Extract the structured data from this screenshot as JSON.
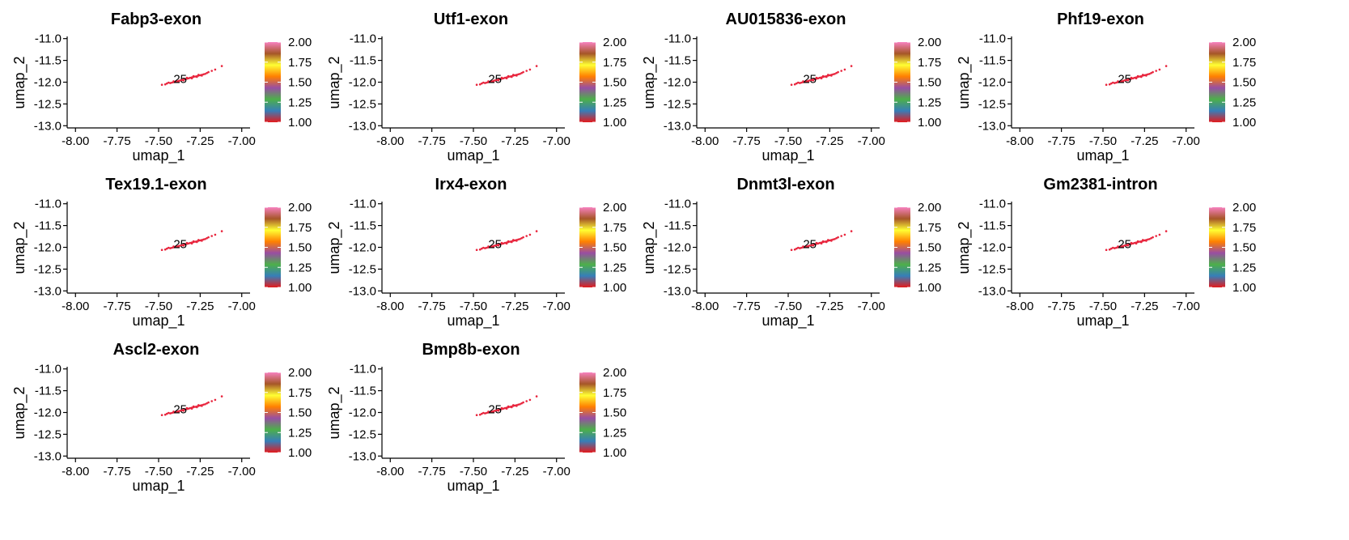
{
  "chart_data": {
    "type": "scatter",
    "axes": {
      "xlabel": "umap_1",
      "ylabel": "umap_2",
      "xlim": [
        -8.05,
        -6.95
      ],
      "ylim": [
        -13.05,
        -10.95
      ],
      "xticks": [
        -8.0,
        -7.75,
        -7.5,
        -7.25,
        -7.0
      ],
      "xtick_labels": [
        "-8.00",
        "-7.75",
        "-7.50",
        "-7.25",
        "-7.00"
      ],
      "yticks": [
        -11.0,
        -11.5,
        -12.0,
        -12.5,
        -13.0
      ],
      "ytick_labels": [
        "-11.0",
        "-11.5",
        "-12.0",
        "-12.5",
        "-13.0"
      ],
      "grid": false
    },
    "legend": {
      "type": "colorbar",
      "placement": "right",
      "range": [
        1.0,
        2.0
      ],
      "ticks": [
        2.0,
        1.75,
        1.5,
        1.25,
        1.0
      ],
      "tick_labels": [
        "2.00",
        "1.75",
        "1.50",
        "1.25",
        "1.00"
      ],
      "colors": [
        "#e41a1c",
        "#377eb8",
        "#4daf4a",
        "#984ea3",
        "#ff7f00",
        "#ffff33",
        "#a65628",
        "#f781bf"
      ]
    },
    "point_color": "#e8253d",
    "cluster_label": {
      "text": "25",
      "x": -7.37,
      "y": -11.93
    },
    "points": [
      {
        "x": -7.48,
        "y": -12.06
      },
      {
        "x": -7.46,
        "y": -12.05
      },
      {
        "x": -7.45,
        "y": -12.03
      },
      {
        "x": -7.43,
        "y": -12.02
      },
      {
        "x": -7.42,
        "y": -12.01
      },
      {
        "x": -7.41,
        "y": -12.0
      },
      {
        "x": -7.4,
        "y": -11.99
      },
      {
        "x": -7.39,
        "y": -11.98
      },
      {
        "x": -7.38,
        "y": -11.97
      },
      {
        "x": -7.37,
        "y": -11.96
      },
      {
        "x": -7.36,
        "y": -11.95
      },
      {
        "x": -7.35,
        "y": -11.94
      },
      {
        "x": -7.34,
        "y": -11.93
      },
      {
        "x": -7.33,
        "y": -11.92
      },
      {
        "x": -7.32,
        "y": -11.91
      },
      {
        "x": -7.31,
        "y": -11.9
      },
      {
        "x": -7.3,
        "y": -11.89
      },
      {
        "x": -7.29,
        "y": -11.88
      },
      {
        "x": -7.28,
        "y": -11.87
      },
      {
        "x": -7.27,
        "y": -11.86
      },
      {
        "x": -7.26,
        "y": -11.85
      },
      {
        "x": -7.25,
        "y": -11.84
      },
      {
        "x": -7.24,
        "y": -11.83
      },
      {
        "x": -7.23,
        "y": -11.82
      },
      {
        "x": -7.22,
        "y": -11.81
      },
      {
        "x": -7.21,
        "y": -11.79
      },
      {
        "x": -7.2,
        "y": -11.77
      },
      {
        "x": -7.18,
        "y": -11.74
      },
      {
        "x": -7.16,
        "y": -11.71
      },
      {
        "x": -7.12,
        "y": -11.63
      },
      {
        "x": -7.44,
        "y": -12.01
      },
      {
        "x": -7.38,
        "y": -11.99
      },
      {
        "x": -7.35,
        "y": -11.96
      },
      {
        "x": -7.3,
        "y": -11.91
      },
      {
        "x": -7.27,
        "y": -11.88
      },
      {
        "x": -7.24,
        "y": -11.85
      },
      {
        "x": -7.33,
        "y": -11.9
      },
      {
        "x": -7.29,
        "y": -11.86
      },
      {
        "x": -7.26,
        "y": -11.83
      },
      {
        "x": -7.41,
        "y": -11.98
      }
    ],
    "panels": [
      {
        "title": "Fabp3-exon"
      },
      {
        "title": "Utf1-exon"
      },
      {
        "title": "AU015836-exon"
      },
      {
        "title": "Phf19-exon"
      },
      {
        "title": "Tex19.1-exon"
      },
      {
        "title": "Irx4-exon"
      },
      {
        "title": "Dnmt3l-exon"
      },
      {
        "title": "Gm2381-intron"
      },
      {
        "title": "Ascl2-exon"
      },
      {
        "title": "Bmp8b-exon"
      }
    ]
  }
}
